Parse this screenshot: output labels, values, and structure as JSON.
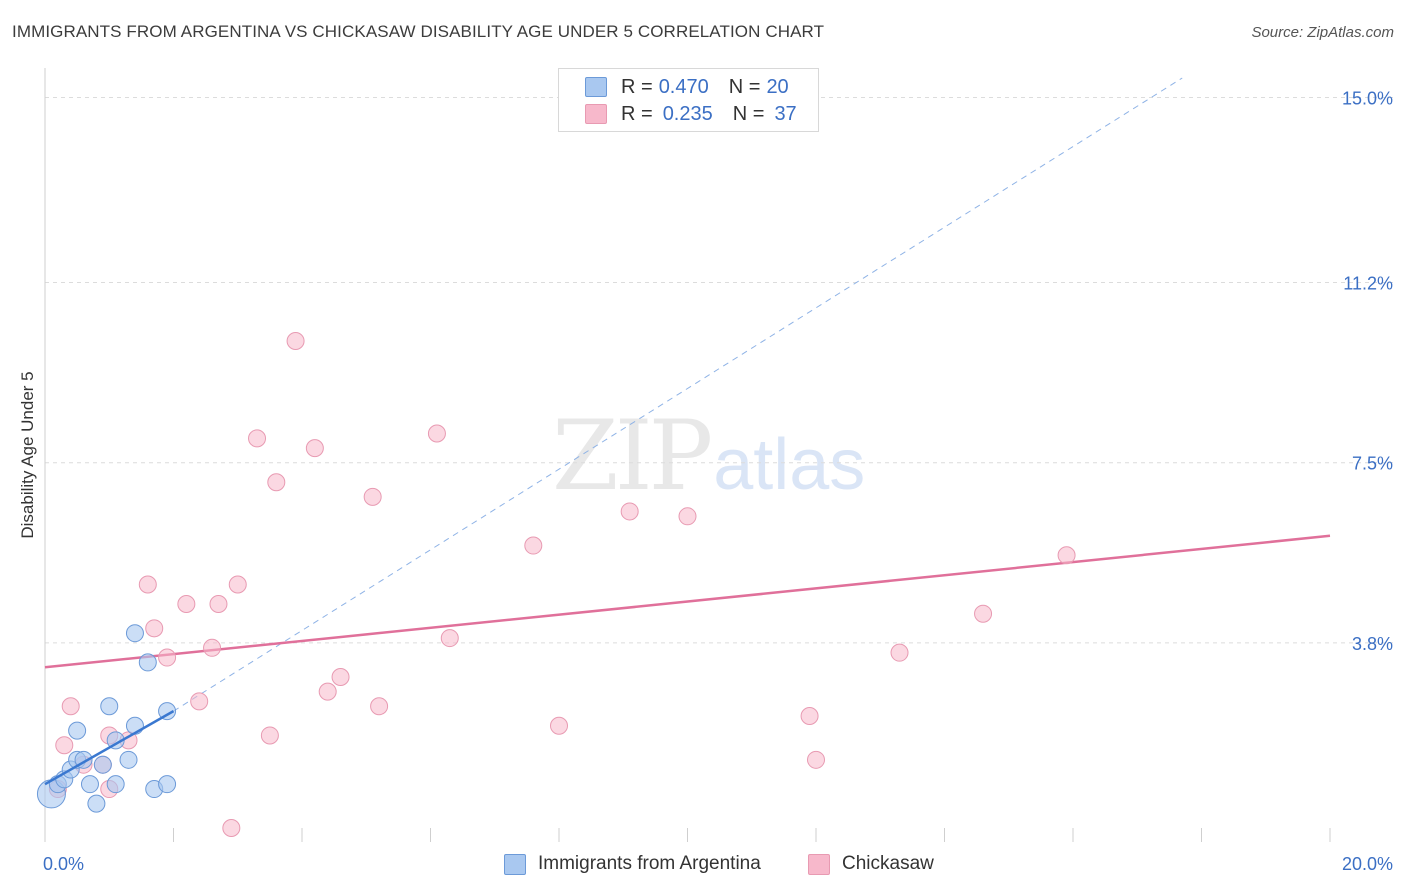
{
  "header": {
    "title": "IMMIGRANTS FROM ARGENTINA VS CHICKASAW DISABILITY AGE UNDER 5 CORRELATION CHART",
    "source": "Source: ZipAtlas.com"
  },
  "watermark": {
    "zip": "ZIP",
    "atlas": "atlas"
  },
  "legend": {
    "rows": [
      {
        "r_label": "R =",
        "r_value": "0.470",
        "n_label": "N =",
        "n_value": "20",
        "color": "#a9c8f0"
      },
      {
        "r_label": "R =",
        "r_value": "0.235",
        "n_label": "N =",
        "n_value": "37",
        "color": "#f7b8cb"
      }
    ]
  },
  "bottom_legend": {
    "series1": "Immigrants from Argentina",
    "series2": "Chickasaw"
  },
  "colors": {
    "blue_fill": "#a9c8f0",
    "blue_stroke": "#6c9ad8",
    "blue_line": "#3a78d0",
    "pink_fill": "#f7b8cb",
    "pink_stroke": "#e89ab2",
    "pink_line": "#e0709a",
    "tick_label": "#3b6fc4",
    "grid": "#dcdcdc"
  },
  "chart_data": {
    "type": "scatter",
    "title": "IMMIGRANTS FROM ARGENTINA VS CHICKASAW DISABILITY AGE UNDER 5 CORRELATION CHART",
    "xlabel": "",
    "ylabel": "Disability Age Under 5",
    "xlim": [
      0,
      20
    ],
    "ylim": [
      0,
      15.4
    ],
    "x_tick_labels": [
      {
        "value": 0,
        "label": "0.0%"
      },
      {
        "value": 20,
        "label": "20.0%"
      }
    ],
    "y_tick_labels": [
      {
        "value": 3.8,
        "label": "3.8%"
      },
      {
        "value": 7.5,
        "label": "7.5%"
      },
      {
        "value": 11.2,
        "label": "11.2%"
      },
      {
        "value": 15.0,
        "label": "15.0%"
      }
    ],
    "series": [
      {
        "name": "Immigrants from Argentina",
        "color": "#a9c8f0",
        "points": [
          {
            "x": 0.1,
            "y": 0.7,
            "size": 14
          },
          {
            "x": 0.2,
            "y": 0.9
          },
          {
            "x": 0.3,
            "y": 1.0
          },
          {
            "x": 0.4,
            "y": 1.2
          },
          {
            "x": 0.5,
            "y": 1.4
          },
          {
            "x": 0.5,
            "y": 2.0
          },
          {
            "x": 0.6,
            "y": 1.4
          },
          {
            "x": 0.7,
            "y": 0.9
          },
          {
            "x": 0.8,
            "y": 0.5
          },
          {
            "x": 0.9,
            "y": 1.3
          },
          {
            "x": 1.0,
            "y": 2.5
          },
          {
            "x": 1.1,
            "y": 1.8
          },
          {
            "x": 1.1,
            "y": 0.9
          },
          {
            "x": 1.3,
            "y": 1.4
          },
          {
            "x": 1.4,
            "y": 2.1
          },
          {
            "x": 1.4,
            "y": 4.0
          },
          {
            "x": 1.6,
            "y": 3.4
          },
          {
            "x": 1.7,
            "y": 0.8
          },
          {
            "x": 1.9,
            "y": 0.9
          },
          {
            "x": 1.9,
            "y": 2.4
          }
        ],
        "trend": {
          "x0": 0.0,
          "y0": 0.9,
          "x1": 2.0,
          "y1": 2.4
        },
        "trend_extended": {
          "x0": 2.0,
          "y0": 2.4,
          "x1": 17.7,
          "y1": 15.4
        }
      },
      {
        "name": "Chickasaw",
        "color": "#f7b8cb",
        "points": [
          {
            "x": 0.2,
            "y": 0.8
          },
          {
            "x": 0.3,
            "y": 1.7
          },
          {
            "x": 0.4,
            "y": 2.5
          },
          {
            "x": 0.6,
            "y": 1.3
          },
          {
            "x": 0.9,
            "y": 1.3
          },
          {
            "x": 1.0,
            "y": 0.8
          },
          {
            "x": 1.0,
            "y": 1.9
          },
          {
            "x": 1.3,
            "y": 1.8
          },
          {
            "x": 1.6,
            "y": 5.0
          },
          {
            "x": 1.7,
            "y": 4.1
          },
          {
            "x": 1.9,
            "y": 3.5
          },
          {
            "x": 2.2,
            "y": 4.6
          },
          {
            "x": 2.4,
            "y": 2.6
          },
          {
            "x": 2.6,
            "y": 3.7
          },
          {
            "x": 2.7,
            "y": 4.6
          },
          {
            "x": 2.9,
            "y": 0.0
          },
          {
            "x": 3.0,
            "y": 5.0
          },
          {
            "x": 3.3,
            "y": 8.0
          },
          {
            "x": 3.5,
            "y": 1.9
          },
          {
            "x": 3.6,
            "y": 7.1
          },
          {
            "x": 3.9,
            "y": 10.0
          },
          {
            "x": 4.2,
            "y": 7.8
          },
          {
            "x": 4.4,
            "y": 2.8
          },
          {
            "x": 4.6,
            "y": 3.1
          },
          {
            "x": 5.1,
            "y": 6.8
          },
          {
            "x": 5.2,
            "y": 2.5
          },
          {
            "x": 6.1,
            "y": 8.1
          },
          {
            "x": 6.3,
            "y": 3.9
          },
          {
            "x": 7.6,
            "y": 5.8
          },
          {
            "x": 8.0,
            "y": 2.1
          },
          {
            "x": 9.1,
            "y": 6.5
          },
          {
            "x": 10.0,
            "y": 6.4
          },
          {
            "x": 11.9,
            "y": 2.3
          },
          {
            "x": 12.0,
            "y": 1.4
          },
          {
            "x": 13.3,
            "y": 3.6
          },
          {
            "x": 14.6,
            "y": 4.4
          },
          {
            "x": 15.9,
            "y": 5.6
          }
        ],
        "trend": {
          "x0": 0.0,
          "y0": 3.3,
          "x1": 20.0,
          "y1": 6.0
        }
      }
    ],
    "grid": true,
    "legend_position": "top-center"
  }
}
